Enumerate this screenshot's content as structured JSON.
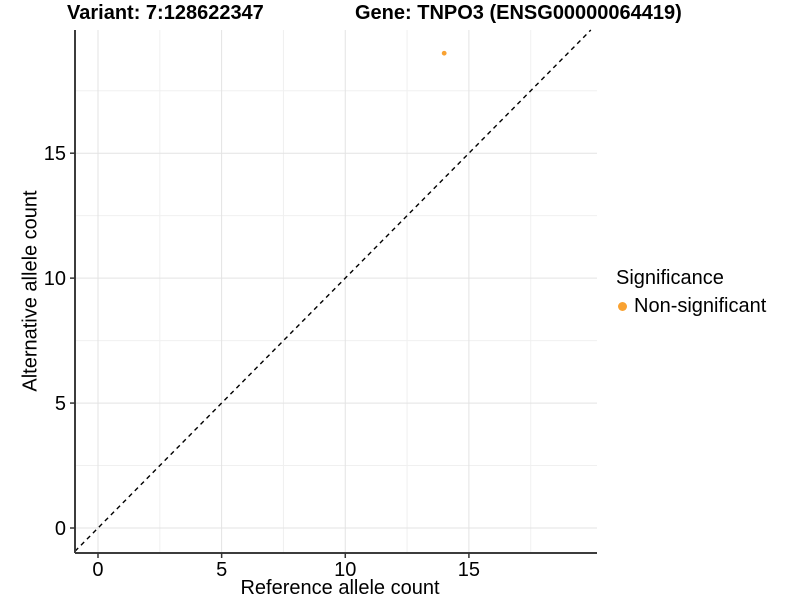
{
  "chart_data": {
    "type": "scatter",
    "title_left": "Variant: 7:128622347",
    "title_right": "Gene: TNPO3 (ENSG00000064419)",
    "xlabel": "Reference allele count",
    "ylabel": "Alternative allele count",
    "xlim": [
      -0.93,
      20.18
    ],
    "ylim": [
      -1.0,
      19.93
    ],
    "x_ticks": [
      0,
      5,
      10,
      15
    ],
    "y_ticks": [
      0,
      5,
      10,
      15
    ],
    "x_minor_ticks": [
      2.5,
      7.5,
      12.5,
      17.5
    ],
    "y_minor_ticks": [
      2.5,
      7.5,
      12.5,
      17.5
    ],
    "grid": "on",
    "identity_line": {
      "style": "dashed",
      "color": "#000000",
      "equation": "y = x"
    },
    "series": [
      {
        "name": "Non-significant",
        "color": "#F9A232",
        "marker": "circle",
        "points": [
          {
            "x": 14,
            "y": 19
          }
        ]
      }
    ],
    "legend": {
      "title": "Significance",
      "position": "right",
      "items": [
        {
          "label": "Non-significant",
          "color": "#F9A232"
        }
      ]
    },
    "style": {
      "axis_line_color": "#3C3C3C",
      "tick_mark_color": "#333333",
      "text_color": "#000000",
      "grid_major_color": "#E3E3E3",
      "grid_minor_color": "#F0F0F0",
      "background": "#FFFFFF"
    }
  }
}
